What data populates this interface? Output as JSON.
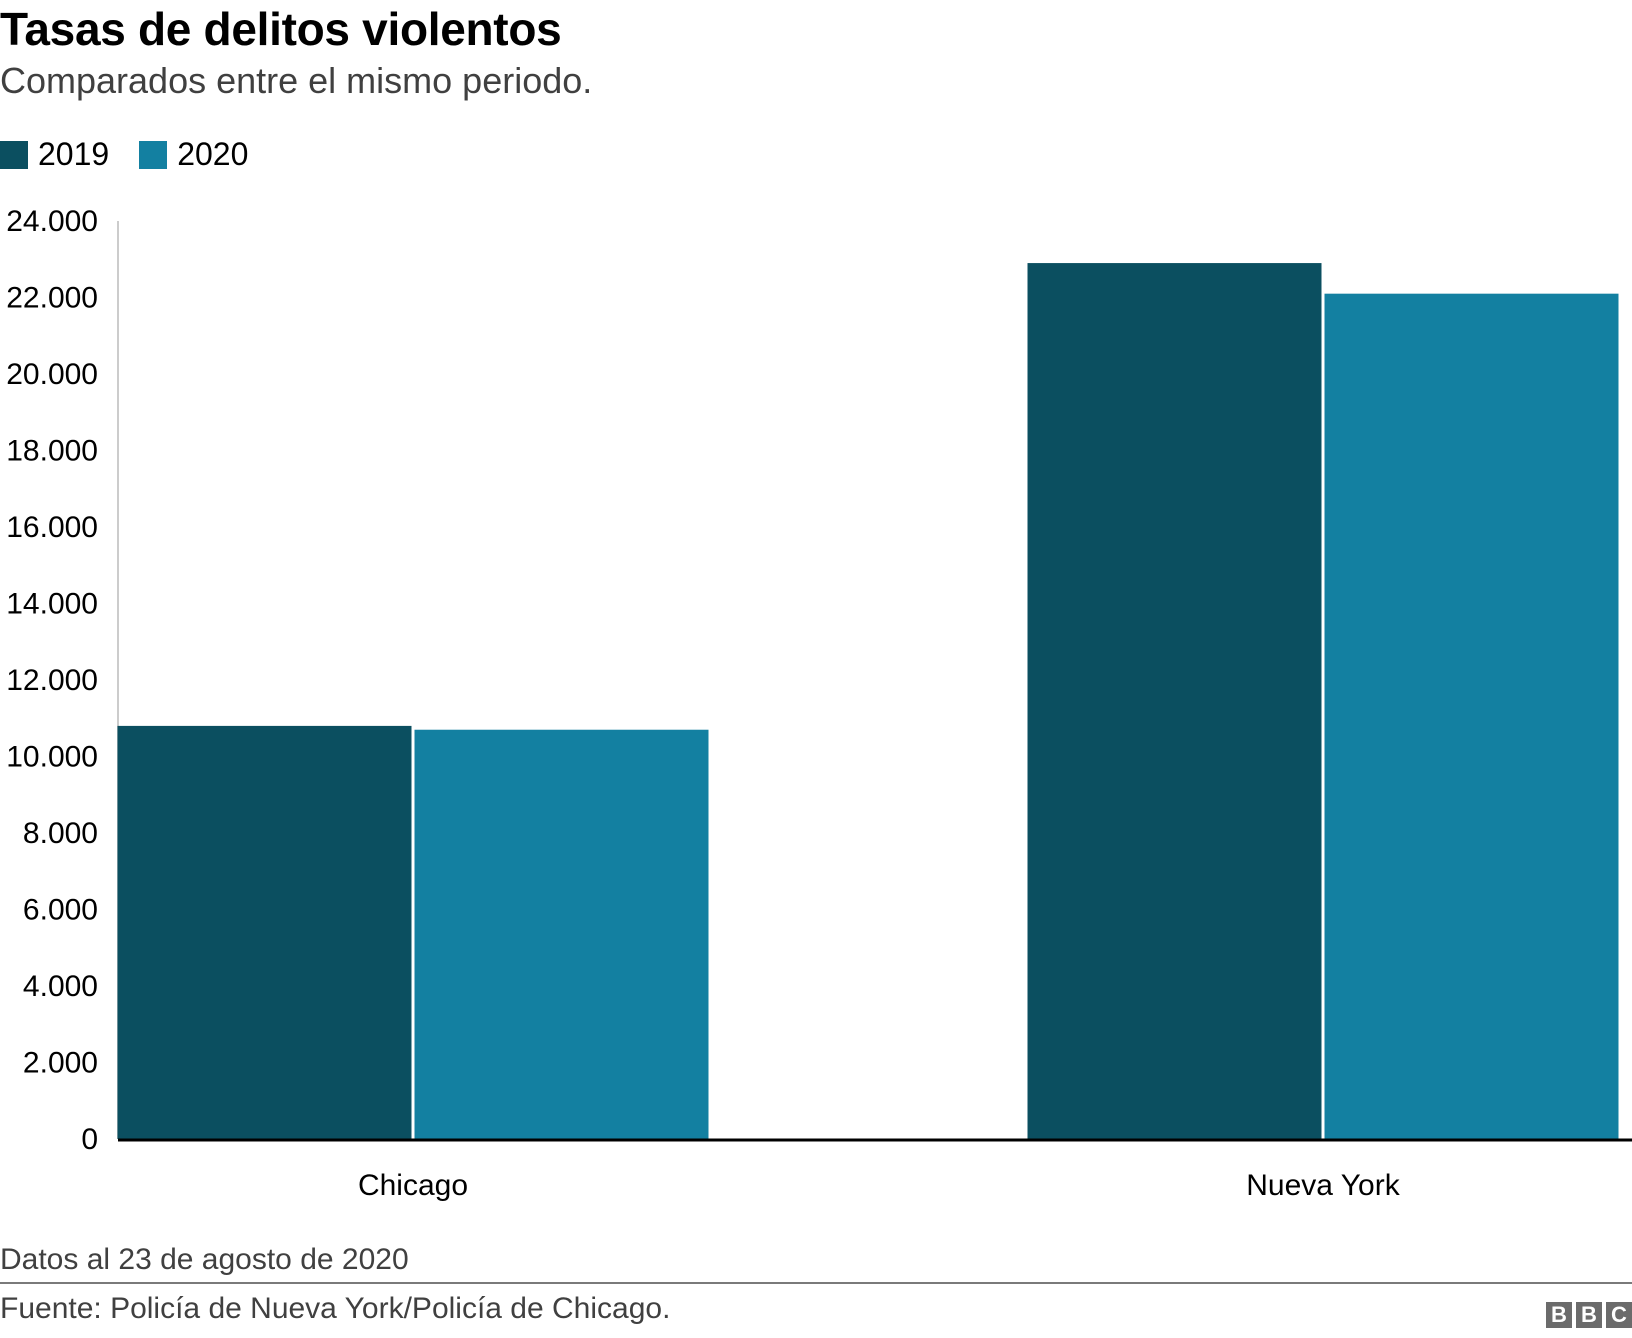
{
  "header": {
    "title": "Tasas de delitos violentos",
    "subtitle": "Comparados entre el mismo periodo."
  },
  "legend": [
    {
      "label": "2019",
      "color": "#0b4f60"
    },
    {
      "label": "2020",
      "color": "#1380a1"
    }
  ],
  "chart_data": {
    "type": "bar",
    "title": "Tasas de delitos violentos",
    "subtitle": "Comparados entre el mismo periodo.",
    "categories": [
      "Chicago",
      "Nueva York"
    ],
    "series": [
      {
        "name": "2019",
        "values": [
          10800,
          22900
        ],
        "color": "#0b4f60"
      },
      {
        "name": "2020",
        "values": [
          10700,
          22100
        ],
        "color": "#1380a1"
      }
    ],
    "xlabel": "",
    "ylabel": "",
    "ylim": [
      0,
      24000
    ],
    "yticks": [
      0,
      2000,
      4000,
      6000,
      8000,
      10000,
      12000,
      14000,
      16000,
      18000,
      20000,
      22000,
      24000
    ],
    "ytick_labels": [
      "0",
      "2.000",
      "4.000",
      "6.000",
      "8.000",
      "10.000",
      "12.000",
      "14.000",
      "16.000",
      "18.000",
      "20.000",
      "22.000",
      "24.000"
    ],
    "grid": false,
    "legend_position": "top-left"
  },
  "footer": {
    "note": "Datos al 23 de agosto de 2020",
    "source": "Fuente: Policía de Nueva York/Policía de Chicago.",
    "logo_letters": [
      "B",
      "B",
      "C"
    ]
  }
}
